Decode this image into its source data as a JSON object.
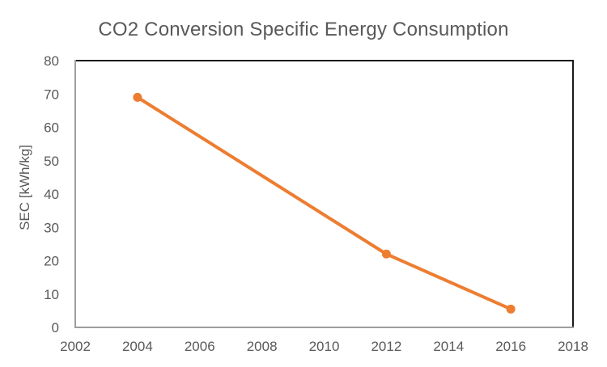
{
  "chart_data": {
    "type": "line",
    "title": "CO2 Conversion Specific Energy Consumption",
    "xlabel": "",
    "ylabel": "SEC [kWh/kg]",
    "x": [
      2004,
      2012,
      2016
    ],
    "series": [
      {
        "name": "SEC [kWh/kg]",
        "values": [
          69,
          22,
          5.5
        ]
      }
    ],
    "xlim": [
      2002,
      2018
    ],
    "ylim": [
      0,
      80
    ],
    "xticks": [
      2002,
      2004,
      2006,
      2008,
      2010,
      2012,
      2014,
      2016,
      2018
    ],
    "yticks": [
      0,
      10,
      20,
      30,
      40,
      50,
      60,
      70,
      80
    ],
    "grid": false,
    "legend": false,
    "marker": "circle",
    "colors": {
      "line": "#ED7D31",
      "text": "#595959",
      "frame_dark": "#1A1A1A",
      "frame_light": "#9D9D9D"
    }
  }
}
